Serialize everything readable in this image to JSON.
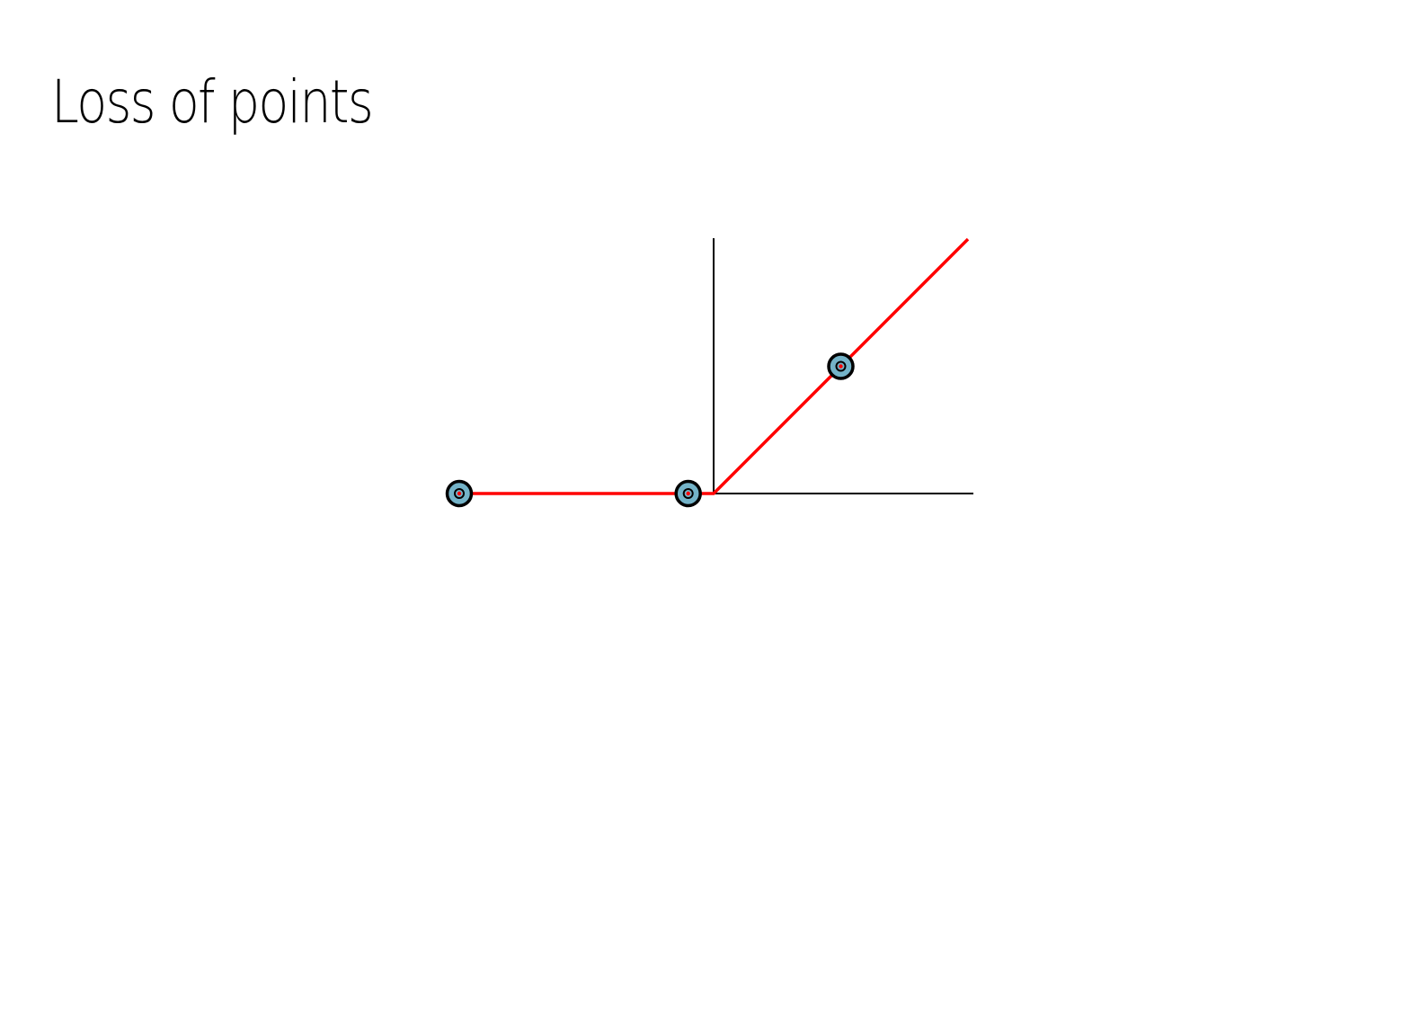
{
  "slide": {
    "title": "Loss of points"
  },
  "colors": {
    "background": "#ffffff",
    "axis": "#000000",
    "loss_curve": "#ff0000",
    "point_fill": "#74b3c8",
    "point_outline": "#000000"
  },
  "chart_data": {
    "type": "line",
    "title": "",
    "xlabel": "",
    "ylabel": "",
    "grid": false,
    "xlim": [
      -1.0,
      1.0
    ],
    "ylim": [
      0,
      1.0
    ],
    "series": [
      {
        "x": [
          -1.0,
          0.0,
          1.0
        ],
        "y": [
          0,
          0,
          1.0
        ]
      }
    ],
    "points": [
      {
        "x": -1.0,
        "y": 0
      },
      {
        "x": -0.1,
        "y": 0
      },
      {
        "x": 0.5,
        "y": 0.5
      }
    ]
  }
}
